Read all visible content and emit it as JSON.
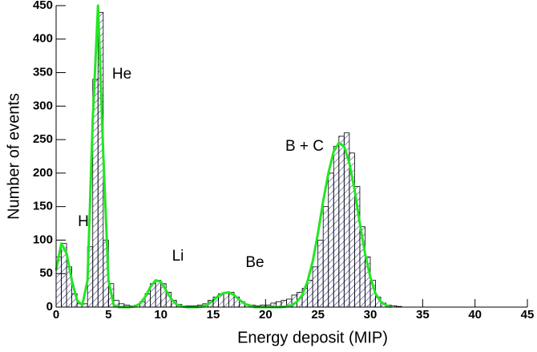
{
  "chart_data": {
    "type": "histogram",
    "xlabel": "Energy deposit (MIP)",
    "ylabel": "Number of events",
    "bins": [
      0,
      0.5,
      1,
      1.5,
      2,
      2.5,
      3,
      3.5,
      4,
      4.5,
      5,
      5.5,
      6,
      6.5,
      7,
      7.5,
      8,
      8.5,
      9,
      9.5,
      10,
      10.5,
      11,
      11.5,
      12,
      12.5,
      13,
      13.5,
      14,
      14.5,
      15,
      15.5,
      16,
      16.5,
      17,
      17.5,
      18,
      18.5,
      19,
      19.5,
      20,
      20.5,
      21,
      21.5,
      22,
      22.5,
      23,
      23.5,
      24,
      24.5,
      25,
      25.5,
      26,
      26.5,
      27,
      27.5,
      28,
      28.5,
      29,
      29.5,
      30,
      30.5,
      31,
      31.5,
      32,
      32.5,
      33
    ],
    "counts": [
      75,
      95,
      60,
      20,
      5,
      5,
      90,
      340,
      440,
      100,
      35,
      10,
      5,
      3,
      2,
      3,
      8,
      20,
      35,
      40,
      35,
      22,
      10,
      4,
      2,
      2,
      2,
      3,
      5,
      10,
      15,
      20,
      22,
      22,
      15,
      8,
      4,
      3,
      2,
      3,
      3,
      6,
      8,
      10,
      12,
      18,
      22,
      28,
      40,
      60,
      100,
      150,
      200,
      240,
      255,
      260,
      230,
      180,
      120,
      75,
      40,
      15,
      6,
      3,
      2,
      1
    ],
    "color": "#3a3a9a",
    "fit": {
      "color": "#22e622",
      "x": [
        0,
        0.5,
        1,
        1.5,
        2,
        2.5,
        3,
        3.5,
        4,
        4.5,
        5,
        5.5,
        6,
        6.5,
        7,
        7.5,
        8,
        8.5,
        9,
        9.5,
        10,
        10.5,
        11,
        11.5,
        12,
        12.5,
        13,
        13.5,
        14,
        14.5,
        15,
        15.5,
        16,
        16.5,
        17,
        17.5,
        18,
        18.5,
        19,
        19.5,
        20,
        20.5,
        21,
        21.5,
        22,
        22.5,
        23,
        23.5,
        24,
        24.5,
        25,
        25.5,
        26,
        26.5,
        27,
        27.5,
        28,
        28.5,
        29,
        29.5,
        30,
        30.5,
        31,
        31.5,
        32
      ],
      "y": [
        55,
        95,
        80,
        40,
        10,
        3,
        40,
        280,
        450,
        230,
        40,
        3,
        0,
        0,
        0,
        1,
        5,
        15,
        30,
        40,
        38,
        25,
        12,
        4,
        1,
        0,
        0,
        0,
        1,
        4,
        10,
        17,
        21,
        22,
        18,
        11,
        5,
        2,
        0,
        0,
        0,
        0,
        0,
        0,
        1,
        3,
        8,
        18,
        38,
        68,
        110,
        158,
        200,
        232,
        245,
        240,
        215,
        175,
        125,
        80,
        45,
        20,
        8,
        3,
        0
      ]
    },
    "xlim": [
      0,
      45
    ],
    "ylim": [
      0,
      450
    ],
    "xticks": [
      0,
      5,
      10,
      15,
      20,
      25,
      30,
      35,
      40,
      45
    ],
    "yticks": [
      0,
      50,
      100,
      150,
      200,
      250,
      300,
      350,
      400,
      450
    ],
    "annotations": [
      "He",
      "H",
      "Li",
      "Be",
      "B + C"
    ]
  }
}
